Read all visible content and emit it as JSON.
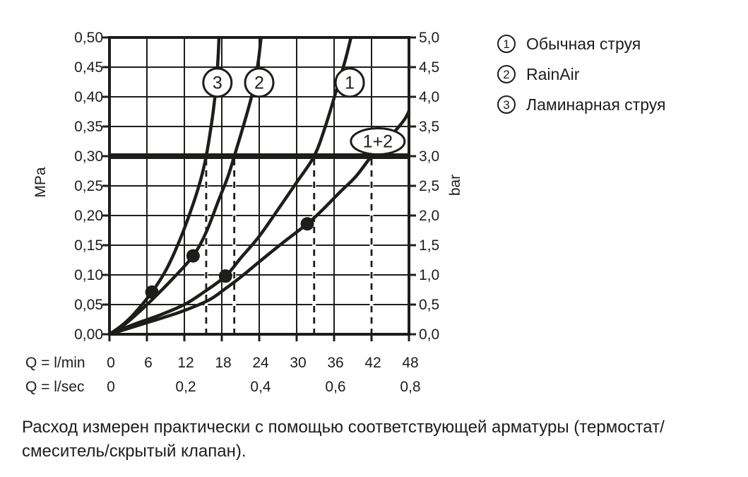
{
  "ink_color": "#1d1d1b",
  "background_color": "#ffffff",
  "legend": {
    "items": [
      {
        "number": "1",
        "label": "Обычная струя"
      },
      {
        "number": "2",
        "label": "RainAir"
      },
      {
        "number": "3",
        "label": "Ламинарная струя"
      }
    ]
  },
  "footer": {
    "line1": "Расход измерен практически с помощью соответствующей арматуры (термостат/",
    "line2": "смеситель/скрытый клапан)."
  },
  "chart_data": {
    "type": "line",
    "title": "",
    "x_axis": {
      "row1_label": "Q = l/min",
      "row2_label": "Q = l/sec",
      "range_lmin": [
        0,
        48
      ],
      "lmin_ticks": [
        "0",
        "6",
        "12",
        "18",
        "24",
        "30",
        "36",
        "42",
        "48"
      ],
      "lsec_ticks": [
        {
          "label": "0",
          "lmin": 0
        },
        {
          "label": "0,2",
          "lmin": 12
        },
        {
          "label": "0,4",
          "lmin": 24
        },
        {
          "label": "0,6",
          "lmin": 36
        },
        {
          "label": "0,8",
          "lmin": 48
        }
      ]
    },
    "y_axis_left": {
      "unit": "MPa",
      "range": [
        0,
        0.5
      ],
      "ticks": [
        "0,50",
        "0,45",
        "0,40",
        "0,35",
        "0,30",
        "0,25",
        "0,20",
        "0,15",
        "0,10",
        "0,05",
        "0,00"
      ]
    },
    "y_axis_right": {
      "unit": "bar",
      "range": [
        0,
        5
      ],
      "ticks": [
        "5,0",
        "4,5",
        "4,0",
        "3,5",
        "3,0",
        "2,5",
        "2,0",
        "1,5",
        "1,0",
        "0,5",
        "0,0"
      ]
    },
    "grid": {
      "x_step_lmin": 6,
      "y_step_mpa": 0.05
    },
    "reference_line": {
      "p_mpa": 0.3,
      "bar": 3.0
    },
    "dashed_markers_lmin": [
      15.5,
      20.0,
      32.8,
      42.0
    ],
    "series": [
      {
        "id": "curve-3",
        "label": "3",
        "name": "Ламинарная струя",
        "points": [
          [
            0,
            0
          ],
          [
            2,
            0.015
          ],
          [
            4,
            0.035
          ],
          [
            6.8,
            0.071
          ],
          [
            9,
            0.107
          ],
          [
            11,
            0.152
          ],
          [
            13,
            0.207
          ],
          [
            14.5,
            0.256
          ],
          [
            15.5,
            0.3
          ],
          [
            16.5,
            0.366
          ],
          [
            17.1,
            0.42
          ],
          [
            17.4,
            0.465
          ],
          [
            17.55,
            0.5
          ]
        ]
      },
      {
        "id": "curve-2",
        "label": "2",
        "name": "RainAir",
        "points": [
          [
            0,
            0
          ],
          [
            2.5,
            0.017
          ],
          [
            5,
            0.04
          ],
          [
            6.8,
            0.058
          ],
          [
            10,
            0.092
          ],
          [
            13.4,
            0.132
          ],
          [
            15.5,
            0.172
          ],
          [
            17.5,
            0.226
          ],
          [
            19,
            0.266
          ],
          [
            20,
            0.3
          ],
          [
            21.6,
            0.356
          ],
          [
            22.9,
            0.406
          ],
          [
            23.8,
            0.456
          ],
          [
            24.3,
            0.5
          ]
        ]
      },
      {
        "id": "curve-1",
        "label": "1",
        "name": "Обычная струя",
        "points": [
          [
            0,
            0
          ],
          [
            4,
            0.017
          ],
          [
            8,
            0.032
          ],
          [
            12,
            0.05
          ],
          [
            15,
            0.07
          ],
          [
            18.6,
            0.098
          ],
          [
            21,
            0.128
          ],
          [
            24,
            0.165
          ],
          [
            27,
            0.21
          ],
          [
            30,
            0.256
          ],
          [
            32.8,
            0.3
          ],
          [
            34.6,
            0.35
          ],
          [
            36.4,
            0.412
          ],
          [
            37.8,
            0.462
          ],
          [
            38.7,
            0.5
          ]
        ]
      },
      {
        "id": "curve-1-2",
        "label": "1+2",
        "name": "1+2",
        "points": [
          [
            0,
            0
          ],
          [
            4,
            0.013
          ],
          [
            8,
            0.026
          ],
          [
            12,
            0.04
          ],
          [
            16,
            0.058
          ],
          [
            18.6,
            0.077
          ],
          [
            21,
            0.096
          ],
          [
            24,
            0.122
          ],
          [
            28,
            0.156
          ],
          [
            31.7,
            0.186
          ],
          [
            34,
            0.208
          ],
          [
            37,
            0.24
          ],
          [
            39.5,
            0.266
          ],
          [
            42,
            0.3
          ],
          [
            44,
            0.322
          ],
          [
            46,
            0.345
          ],
          [
            47.3,
            0.362
          ],
          [
            48,
            0.376
          ]
        ]
      }
    ],
    "marker_dots": [
      {
        "series": "curve-3",
        "q_lmin": 6.8,
        "p_mpa": 0.071
      },
      {
        "series": "curve-2",
        "q_lmin": 13.4,
        "p_mpa": 0.132
      },
      {
        "series": "curve-1",
        "q_lmin": 18.6,
        "p_mpa": 0.098
      },
      {
        "series": "curve-1-2",
        "q_lmin": 31.7,
        "p_mpa": 0.186
      }
    ],
    "curve_labels": [
      {
        "text": "3",
        "q_lmin": 17.3,
        "p_mpa": 0.424,
        "shape": "circle"
      },
      {
        "text": "2",
        "q_lmin": 24.0,
        "p_mpa": 0.424,
        "shape": "circle"
      },
      {
        "text": "1",
        "q_lmin": 38.5,
        "p_mpa": 0.424,
        "shape": "circle"
      },
      {
        "text": "1+2",
        "q_lmin": 43.0,
        "p_mpa": 0.325,
        "shape": "ellipse"
      }
    ]
  }
}
